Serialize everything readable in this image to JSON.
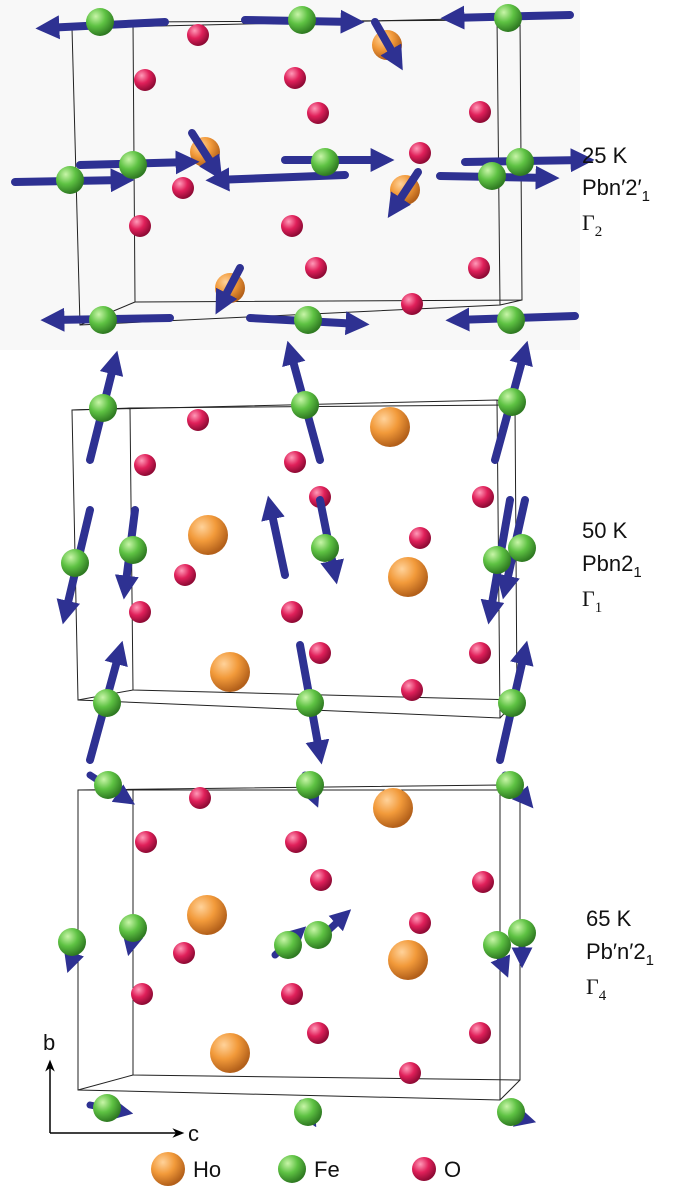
{
  "panels": [
    {
      "temperature": "25 K",
      "space_group": {
        "main": "Pbn′2′",
        "sub": "1"
      },
      "irrep": {
        "main": "Γ",
        "sub": "2"
      }
    },
    {
      "temperature": "50 K",
      "space_group": {
        "main": "Pbn2",
        "sub": "1"
      },
      "irrep": {
        "main": "Γ",
        "sub": "1"
      }
    },
    {
      "temperature": "65 K",
      "space_group": {
        "main": "Pb′n′2",
        "sub": "1"
      },
      "irrep": {
        "main": "Γ",
        "sub": "4"
      }
    }
  ],
  "axes": {
    "vertical": "b",
    "horizontal": "c"
  },
  "legend": [
    {
      "label": "Ho"
    },
    {
      "label": "Fe"
    },
    {
      "label": "O"
    }
  ]
}
